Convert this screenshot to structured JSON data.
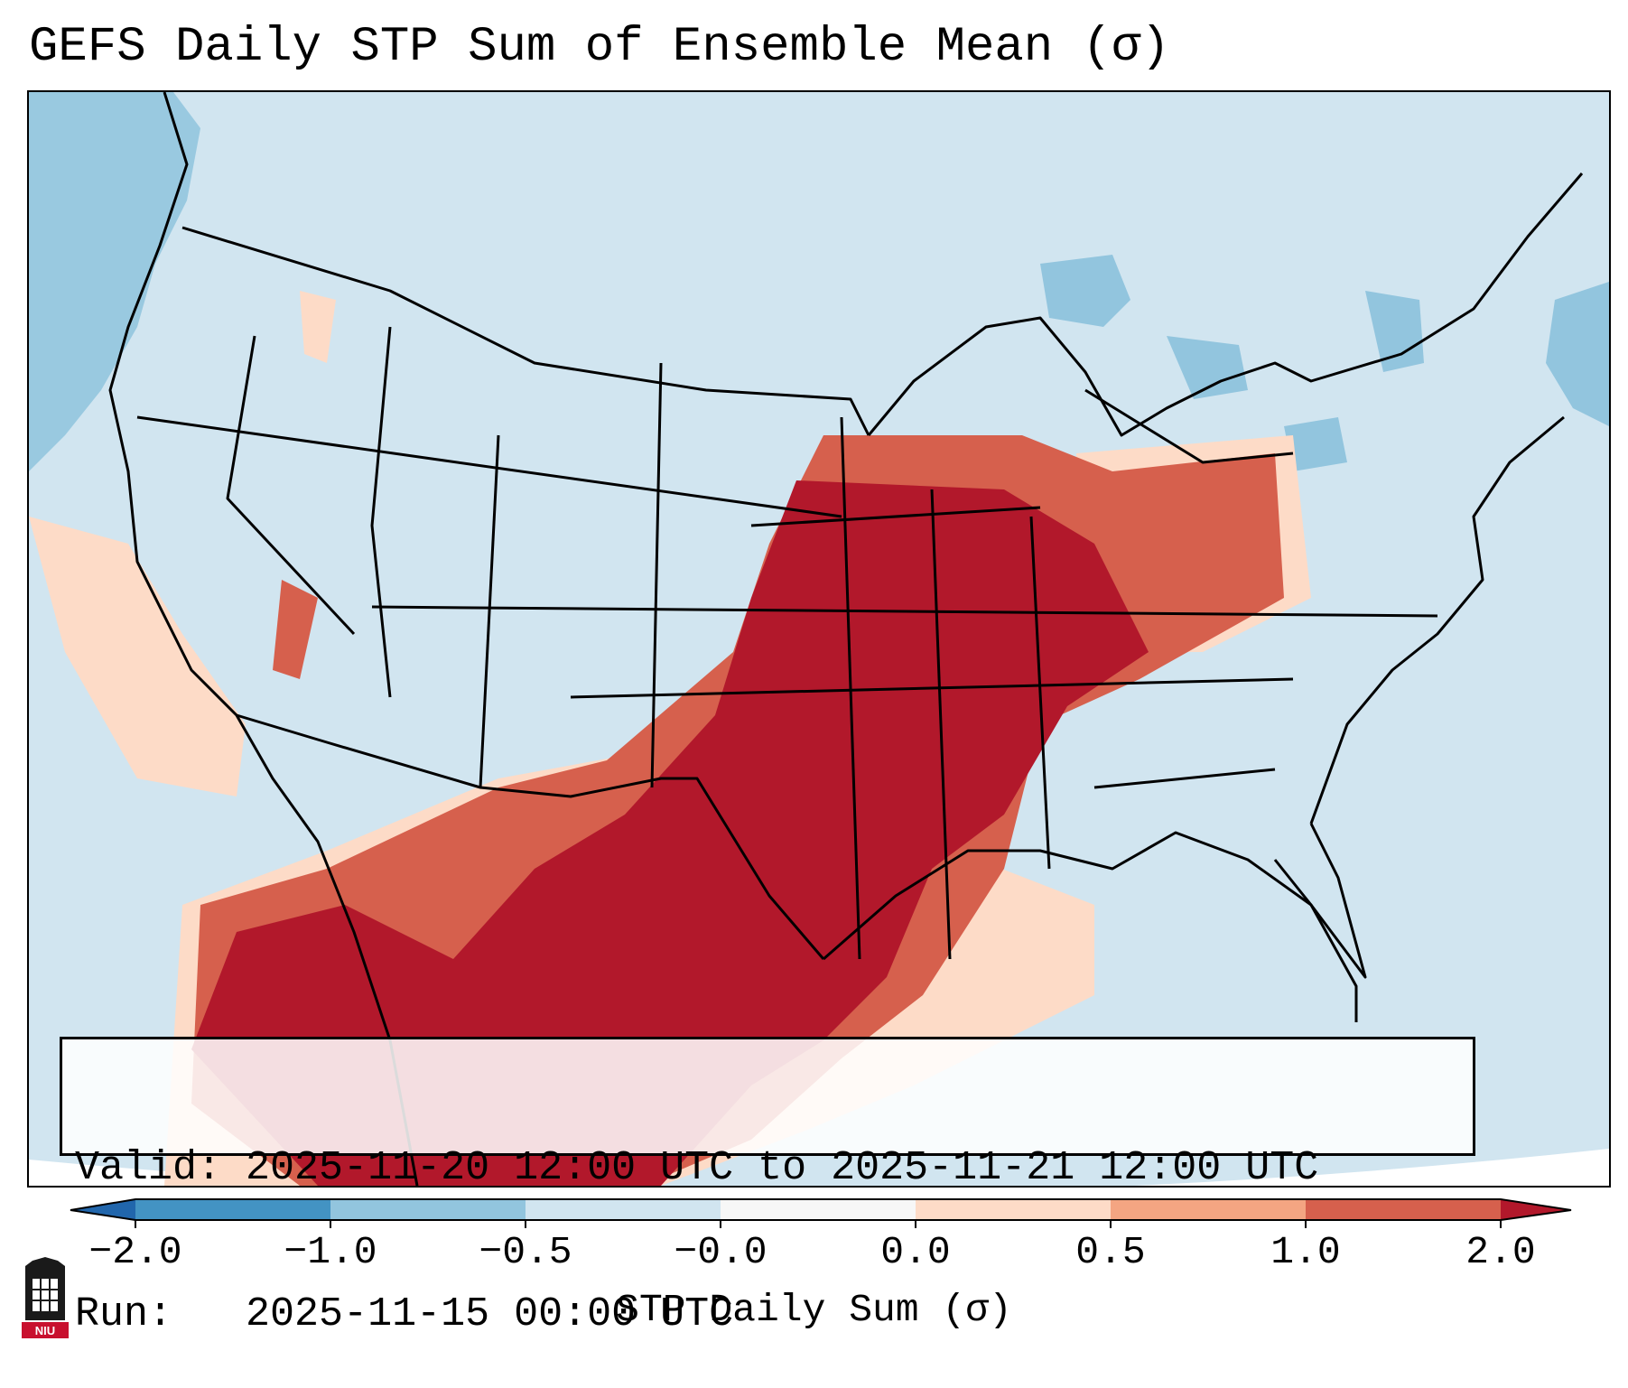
{
  "title": "GEFS Daily STP Sum of Ensemble Mean (σ)",
  "info": {
    "valid_label": "Valid:",
    "valid_value": "2025-11-20 12:00 UTC to 2025-11-21 12:00 UTC",
    "run_label": "Run:",
    "run_value": "2025-11-15 00:00 UTC"
  },
  "colorbar": {
    "label": "STP Daily Sum (σ)",
    "ticks": [
      "−2.0",
      "−1.0",
      "−0.5",
      "−0.0",
      "0.0",
      "0.5",
      "1.0",
      "2.0"
    ],
    "colors": {
      "lt_neg2": "#2166ac",
      "neg2_neg1": "#4393c3",
      "neg1_neg05": "#92c5de",
      "neg05_0": "#d1e5f0",
      "zero": "#f7f7f7",
      "p0_05": "#fddbc7",
      "p05_1": "#f4a582",
      "p1_2": "#d6604d",
      "gt2": "#b2182b"
    }
  },
  "map": {
    "background": "#d1e5f0",
    "off_domain": "#ffffff",
    "border_color": "#000000"
  },
  "logo": {
    "text": "NIU",
    "accent": "#c8102e"
  }
}
